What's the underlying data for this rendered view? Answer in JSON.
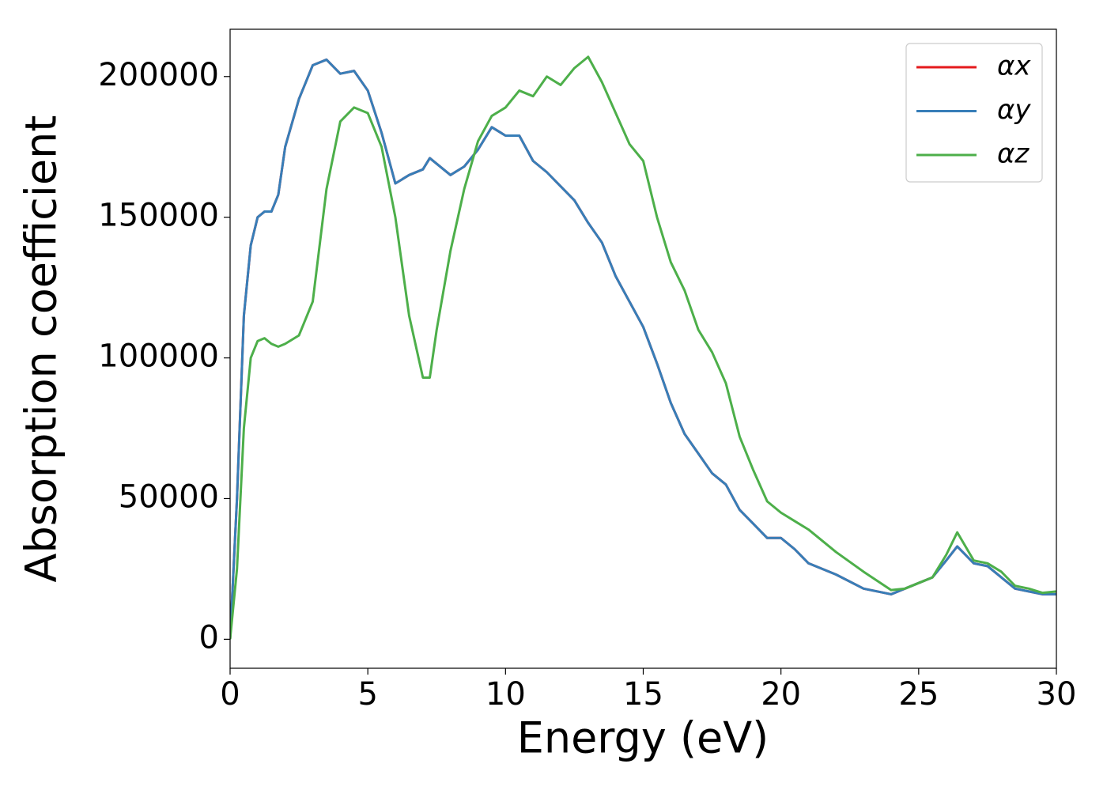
{
  "chart_data": {
    "type": "line",
    "xlabel": "Energy (eV)",
    "ylabel": "Absorption coefficient",
    "x": [
      0,
      0.25,
      0.5,
      0.75,
      1,
      1.25,
      1.5,
      1.75,
      2,
      2.5,
      3,
      3.5,
      4,
      4.5,
      5,
      5.5,
      6,
      6.5,
      7,
      7.25,
      7.5,
      8,
      8.5,
      9,
      9.5,
      10,
      10.5,
      11,
      11.5,
      12,
      12.5,
      13,
      13.5,
      14,
      14.5,
      15,
      15.5,
      16,
      16.5,
      17,
      17.5,
      18,
      18.5,
      19,
      19.5,
      20,
      20.5,
      21,
      22,
      23,
      24,
      24.5,
      25,
      25.5,
      26,
      26.4,
      27,
      27.5,
      28,
      28.5,
      29,
      29.5,
      30
    ],
    "series": [
      {
        "name": "αx",
        "color": "#e41a1c",
        "values": [
          0,
          50000,
          115000,
          140000,
          150000,
          152000,
          152000,
          158000,
          175000,
          192000,
          204000,
          206000,
          201000,
          202000,
          195000,
          180000,
          162000,
          165000,
          167000,
          171000,
          169000,
          165000,
          168000,
          174000,
          182000,
          179000,
          179000,
          170000,
          166000,
          161000,
          156000,
          148000,
          141000,
          129000,
          120000,
          111000,
          98000,
          84000,
          73000,
          66000,
          59000,
          55000,
          46000,
          41000,
          36000,
          36000,
          32000,
          27000,
          23000,
          18000,
          16000,
          18000,
          20000,
          22000,
          28000,
          33000,
          27000,
          26000,
          22000,
          18000,
          17000,
          16000,
          16000
        ]
      },
      {
        "name": "αy",
        "color": "#377eb8",
        "values": [
          0,
          50000,
          115000,
          140000,
          150000,
          152000,
          152000,
          158000,
          175000,
          192000,
          204000,
          206000,
          201000,
          202000,
          195000,
          180000,
          162000,
          165000,
          167000,
          171000,
          169000,
          165000,
          168000,
          174000,
          182000,
          179000,
          179000,
          170000,
          166000,
          161000,
          156000,
          148000,
          141000,
          129000,
          120000,
          111000,
          98000,
          84000,
          73000,
          66000,
          59000,
          55000,
          46000,
          41000,
          36000,
          36000,
          32000,
          27000,
          23000,
          18000,
          16000,
          18000,
          20000,
          22000,
          28000,
          33000,
          27000,
          26000,
          22000,
          18000,
          17000,
          16000,
          16000
        ]
      },
      {
        "name": "αz",
        "color": "#4daf4a",
        "values": [
          0,
          25000,
          75000,
          100000,
          106000,
          107000,
          105000,
          104000,
          105000,
          108000,
          120000,
          160000,
          184000,
          189000,
          187000,
          175000,
          150000,
          115000,
          93000,
          93000,
          110000,
          138000,
          160000,
          177000,
          186000,
          189000,
          195000,
          193000,
          200000,
          197000,
          203000,
          207000,
          198000,
          187000,
          176000,
          170000,
          150000,
          134000,
          124000,
          110000,
          102000,
          91000,
          72000,
          60000,
          49000,
          45000,
          42000,
          39000,
          31000,
          24000,
          17500,
          18000,
          20000,
          22000,
          30000,
          38000,
          28000,
          27000,
          24000,
          19000,
          18000,
          16500,
          17000
        ]
      }
    ],
    "xlim": [
      0,
      30
    ],
    "xticks": [
      0,
      5,
      10,
      15,
      20,
      25,
      30
    ],
    "ylim": [
      -10300,
      216800
    ],
    "yticks": [
      0,
      50000,
      100000,
      150000,
      200000
    ],
    "legend": "upper right"
  }
}
